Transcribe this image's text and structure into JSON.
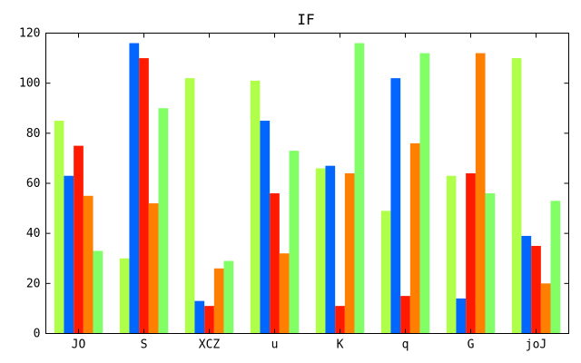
{
  "chart_data": {
    "type": "bar",
    "title": "IF",
    "xlabel": "",
    "ylabel": "",
    "categories": [
      "JO",
      "S",
      "XCZ",
      "u",
      "K",
      "q",
      "G",
      "joJ"
    ],
    "ylim": [
      0,
      120
    ],
    "yticks": [
      0,
      20,
      40,
      60,
      80,
      100,
      120
    ],
    "grid": false,
    "legend": "none",
    "series": [
      {
        "color": "#b0ff4a",
        "values": [
          85,
          30,
          102,
          101,
          66,
          49,
          63,
          110
        ]
      },
      {
        "color": "#0066ff",
        "values": [
          63,
          116,
          13,
          85,
          67,
          102,
          14,
          39
        ]
      },
      {
        "color": "#ff1a00",
        "values": [
          75,
          110,
          11,
          56,
          11,
          15,
          64,
          35
        ]
      },
      {
        "color": "#ff8000",
        "values": [
          55,
          52,
          26,
          32,
          64,
          76,
          112,
          20
        ]
      },
      {
        "color": "#80ff66",
        "values": [
          33,
          90,
          29,
          73,
          116,
          112,
          56,
          53
        ]
      }
    ]
  }
}
